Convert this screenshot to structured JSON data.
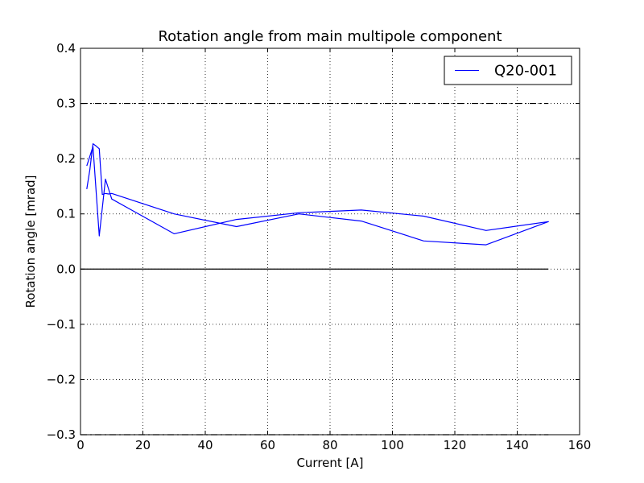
{
  "chart_data": {
    "type": "line",
    "title": "Rotation angle from main multipole component",
    "xlabel": "Current [A]",
    "ylabel": "Rotation angle [mrad]",
    "xlim": [
      0,
      160
    ],
    "ylim": [
      -0.3,
      0.4
    ],
    "xticks": [
      0,
      20,
      40,
      60,
      80,
      100,
      120,
      140,
      160
    ],
    "yticks": [
      -0.3,
      -0.2,
      -0.1,
      0.0,
      0.1,
      0.2,
      0.3,
      0.4
    ],
    "xtick_labels": [
      "0",
      "20",
      "40",
      "60",
      "80",
      "100",
      "120",
      "140",
      "160"
    ],
    "ytick_labels": [
      "−0.3",
      "−0.2",
      "−0.1",
      "0.0",
      "0.1",
      "0.2",
      "0.3",
      "0.4"
    ],
    "grid": true,
    "legend_position": "top-right",
    "series_color": "#0000ff",
    "series": [
      {
        "name": "Q20-001",
        "x": [
          2,
          3,
          4,
          5,
          6,
          7,
          8,
          9,
          10,
          30,
          50,
          70,
          90,
          110,
          130,
          150,
          130,
          110,
          90,
          70,
          50,
          30,
          10,
          8,
          6,
          4,
          2
        ],
        "y": [
          0.145,
          0.18,
          0.227,
          0.223,
          0.218,
          0.135,
          0.137,
          0.136,
          0.137,
          0.1,
          0.077,
          0.1,
          0.087,
          0.051,
          0.044,
          0.086,
          0.07,
          0.096,
          0.107,
          0.102,
          0.09,
          0.064,
          0.127,
          0.163,
          0.06,
          0.222,
          0.187
        ]
      }
    ],
    "reference_lines": [
      {
        "y": 0.3,
        "style": "dash-dot"
      },
      {
        "y": -0.3,
        "style": "dash-dot"
      },
      {
        "y": 0.0,
        "style": "solid"
      }
    ]
  }
}
